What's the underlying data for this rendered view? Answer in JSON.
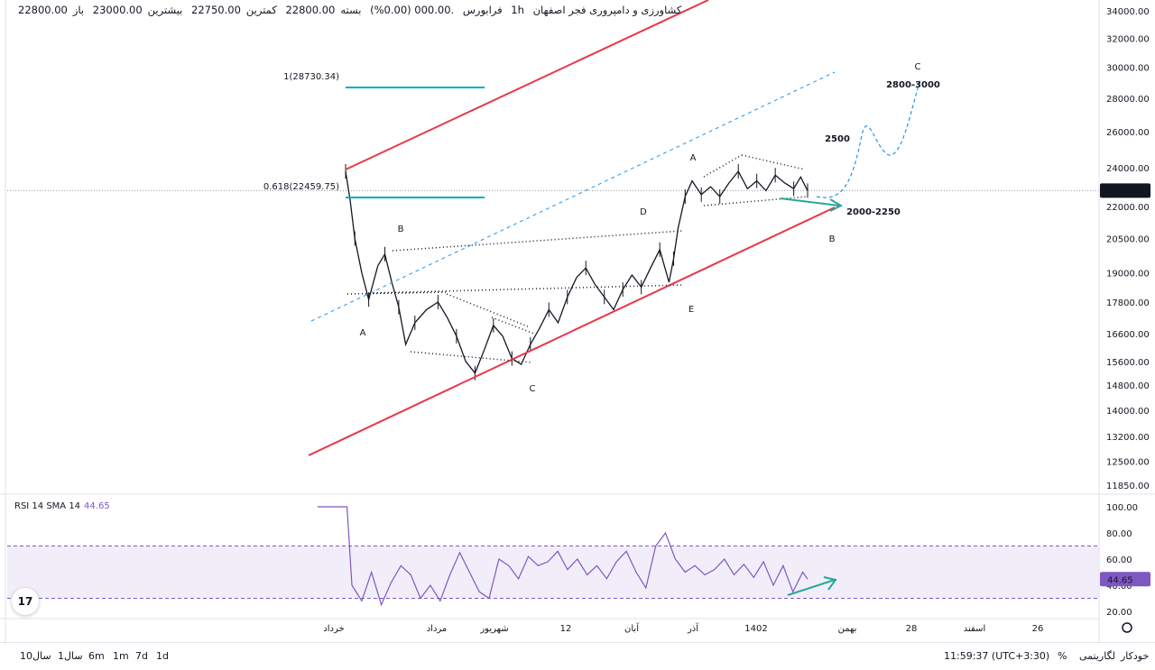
{
  "header": {
    "open_label": "باز",
    "open": "22800.00",
    "high_label": "بیشترین",
    "high": "23000.00",
    "low_label": "کمترین",
    "low": "22750.00",
    "close_label": "بسته",
    "close": "22800.00",
    "change": ".000.00 (0.00%)",
    "exchange": "فرابورس",
    "interval": "1h",
    "symbol": "کشاورزی و دامپروری فجر اصفهان"
  },
  "price_badge": "22800.00",
  "rsi_badge": "44.65",
  "rsi_legend": {
    "title": "RSI 14 SMA 14",
    "value": "44.65"
  },
  "logo_text": "17",
  "bottom_bar": {
    "ranges": [
      "10سال",
      "1سال",
      "6m",
      "1m",
      "7d",
      "1d"
    ],
    "time": "11:59:37 (UTC+3:30)",
    "percent": "%",
    "log": "لگاریتمی",
    "auto": "خودکار"
  },
  "colors": {
    "channel": "#e8374a",
    "fib": "#00acc1",
    "rsi": "#7e57c2",
    "arrow": "#26a69a",
    "projection": "#2196f3"
  },
  "chart_data": {
    "type": "line",
    "price_axis": {
      "scale": "log",
      "ticks": [
        "34000.00",
        "32000.00",
        "30000.00",
        "28000.00",
        "26000.00",
        "24000.00",
        "22000.00",
        "20500.00",
        "19000.00",
        "17800.00",
        "16600.00",
        "15600.00",
        "14800.00",
        "14000.00",
        "13200.00",
        "12500.00",
        "11850.00"
      ]
    },
    "rsi_axis": {
      "ticks": [
        "100.00",
        "80.00",
        "60.00",
        "40.00",
        "20.00"
      ],
      "band": [
        30,
        70
      ]
    },
    "time_axis": [
      "خرداد",
      "مرداد",
      "شهریور",
      "12",
      "آبان",
      "آذر",
      "1402",
      "بهمن",
      "28",
      "اسفند",
      "26"
    ],
    "current_price": 22800,
    "fib_levels": [
      {
        "label": "1(28730.34)",
        "price": 28730.34
      },
      {
        "label": "0.618(22459.75)",
        "price": 22459.75
      }
    ],
    "wave_labels": [
      "A",
      "B",
      "A",
      "C",
      "D",
      "E",
      "A",
      "B",
      "C"
    ],
    "annotations": [
      "2500",
      "2800-3000",
      "2000-2250"
    ],
    "price_path": [
      [
        0.0,
        23800
      ],
      [
        0.01,
        22300
      ],
      [
        0.02,
        20500
      ],
      [
        0.035,
        19000
      ],
      [
        0.05,
        17900
      ],
      [
        0.07,
        19300
      ],
      [
        0.085,
        19800
      ],
      [
        0.1,
        18600
      ],
      [
        0.115,
        17600
      ],
      [
        0.13,
        16200
      ],
      [
        0.15,
        17000
      ],
      [
        0.175,
        17500
      ],
      [
        0.2,
        17800
      ],
      [
        0.22,
        17200
      ],
      [
        0.24,
        16500
      ],
      [
        0.26,
        15600
      ],
      [
        0.28,
        15200
      ],
      [
        0.3,
        16000
      ],
      [
        0.32,
        16900
      ],
      [
        0.34,
        16500
      ],
      [
        0.36,
        15700
      ],
      [
        0.38,
        15500
      ],
      [
        0.4,
        16200
      ],
      [
        0.42,
        16800
      ],
      [
        0.44,
        17500
      ],
      [
        0.46,
        17000
      ],
      [
        0.48,
        18000
      ],
      [
        0.5,
        18800
      ],
      [
        0.52,
        19200
      ],
      [
        0.54,
        18500
      ],
      [
        0.56,
        18000
      ],
      [
        0.58,
        17500
      ],
      [
        0.6,
        18300
      ],
      [
        0.62,
        18900
      ],
      [
        0.64,
        18400
      ],
      [
        0.66,
        19200
      ],
      [
        0.68,
        20000
      ],
      [
        0.7,
        18600
      ],
      [
        0.71,
        19600
      ],
      [
        0.72,
        21000
      ],
      [
        0.735,
        22500
      ],
      [
        0.75,
        23300
      ],
      [
        0.77,
        22600
      ],
      [
        0.79,
        23000
      ],
      [
        0.81,
        22500
      ],
      [
        0.83,
        23200
      ],
      [
        0.85,
        23800
      ],
      [
        0.87,
        22900
      ],
      [
        0.89,
        23300
      ],
      [
        0.91,
        22800
      ],
      [
        0.93,
        23600
      ],
      [
        0.95,
        23200
      ],
      [
        0.97,
        22900
      ],
      [
        0.985,
        23500
      ],
      [
        1.0,
        22800
      ]
    ],
    "rsi_path": [
      [
        0.0,
        100
      ],
      [
        0.06,
        100
      ],
      [
        0.07,
        40
      ],
      [
        0.09,
        28
      ],
      [
        0.11,
        50
      ],
      [
        0.13,
        25
      ],
      [
        0.15,
        42
      ],
      [
        0.17,
        55
      ],
      [
        0.19,
        48
      ],
      [
        0.21,
        30
      ],
      [
        0.23,
        40
      ],
      [
        0.25,
        28
      ],
      [
        0.27,
        48
      ],
      [
        0.29,
        65
      ],
      [
        0.31,
        50
      ],
      [
        0.33,
        35
      ],
      [
        0.35,
        30
      ],
      [
        0.37,
        60
      ],
      [
        0.39,
        55
      ],
      [
        0.41,
        45
      ],
      [
        0.43,
        62
      ],
      [
        0.45,
        55
      ],
      [
        0.47,
        58
      ],
      [
        0.49,
        66
      ],
      [
        0.51,
        52
      ],
      [
        0.53,
        60
      ],
      [
        0.55,
        48
      ],
      [
        0.57,
        55
      ],
      [
        0.59,
        45
      ],
      [
        0.61,
        58
      ],
      [
        0.63,
        66
      ],
      [
        0.65,
        50
      ],
      [
        0.67,
        38
      ],
      [
        0.69,
        70
      ],
      [
        0.71,
        80
      ],
      [
        0.73,
        60
      ],
      [
        0.75,
        50
      ],
      [
        0.77,
        55
      ],
      [
        0.79,
        48
      ],
      [
        0.81,
        52
      ],
      [
        0.83,
        60
      ],
      [
        0.85,
        48
      ],
      [
        0.87,
        56
      ],
      [
        0.89,
        46
      ],
      [
        0.91,
        58
      ],
      [
        0.93,
        40
      ],
      [
        0.95,
        55
      ],
      [
        0.97,
        35
      ],
      [
        0.99,
        50
      ],
      [
        1.0,
        44.65
      ]
    ]
  }
}
